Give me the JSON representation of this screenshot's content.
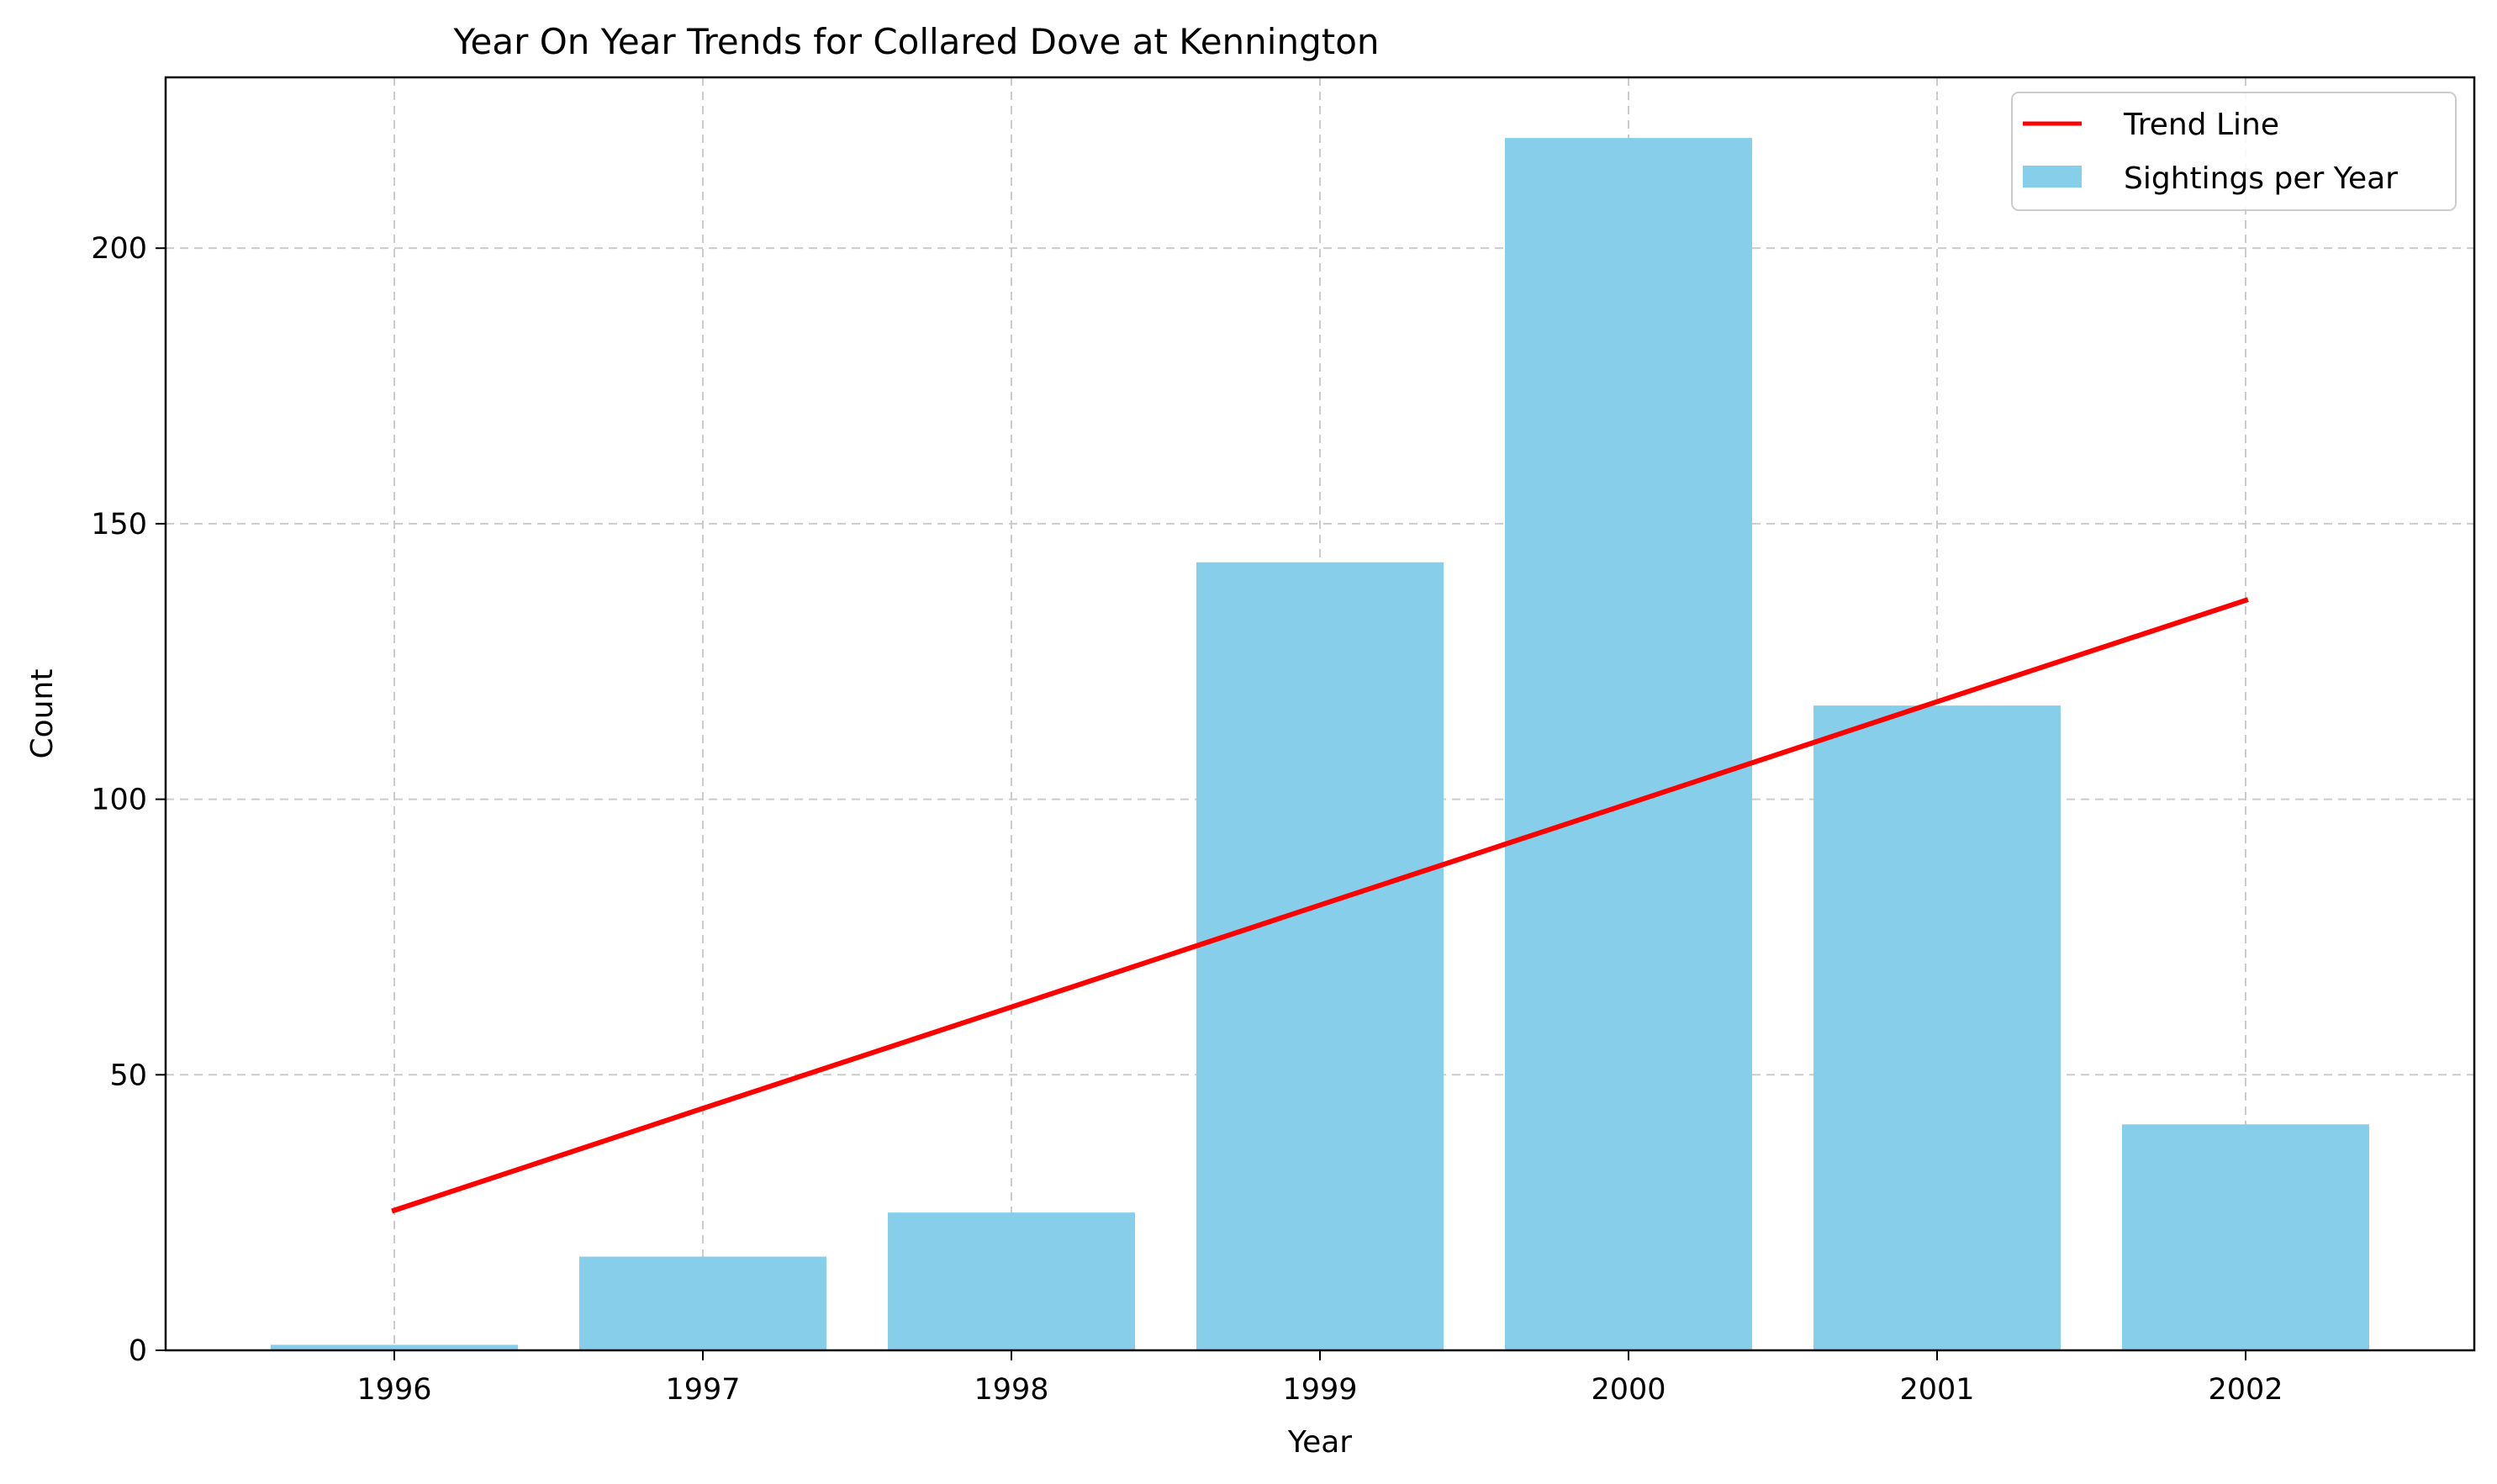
{
  "chart_data": {
    "type": "bar",
    "title": "Year On Year Trends for Collared Dove at Kennington",
    "xlabel": "Year",
    "ylabel": "Count",
    "categories": [
      "1996",
      "1997",
      "1998",
      "1999",
      "2000",
      "2001",
      "2002"
    ],
    "series": [
      {
        "name": "Sightings per Year",
        "type": "bar",
        "color": "#87CEEB",
        "values": [
          1,
          17,
          25,
          143,
          220,
          117,
          41
        ]
      },
      {
        "name": "Trend Line",
        "type": "line",
        "color": "#FF0000",
        "values": [
          25.4,
          43.9,
          62.3,
          80.8,
          99.2,
          117.7,
          136.1
        ]
      }
    ],
    "ylim": [
      0,
      231
    ],
    "yticks": [
      0,
      50,
      100,
      150,
      200
    ],
    "grid": true,
    "legend_position": "top-right"
  }
}
